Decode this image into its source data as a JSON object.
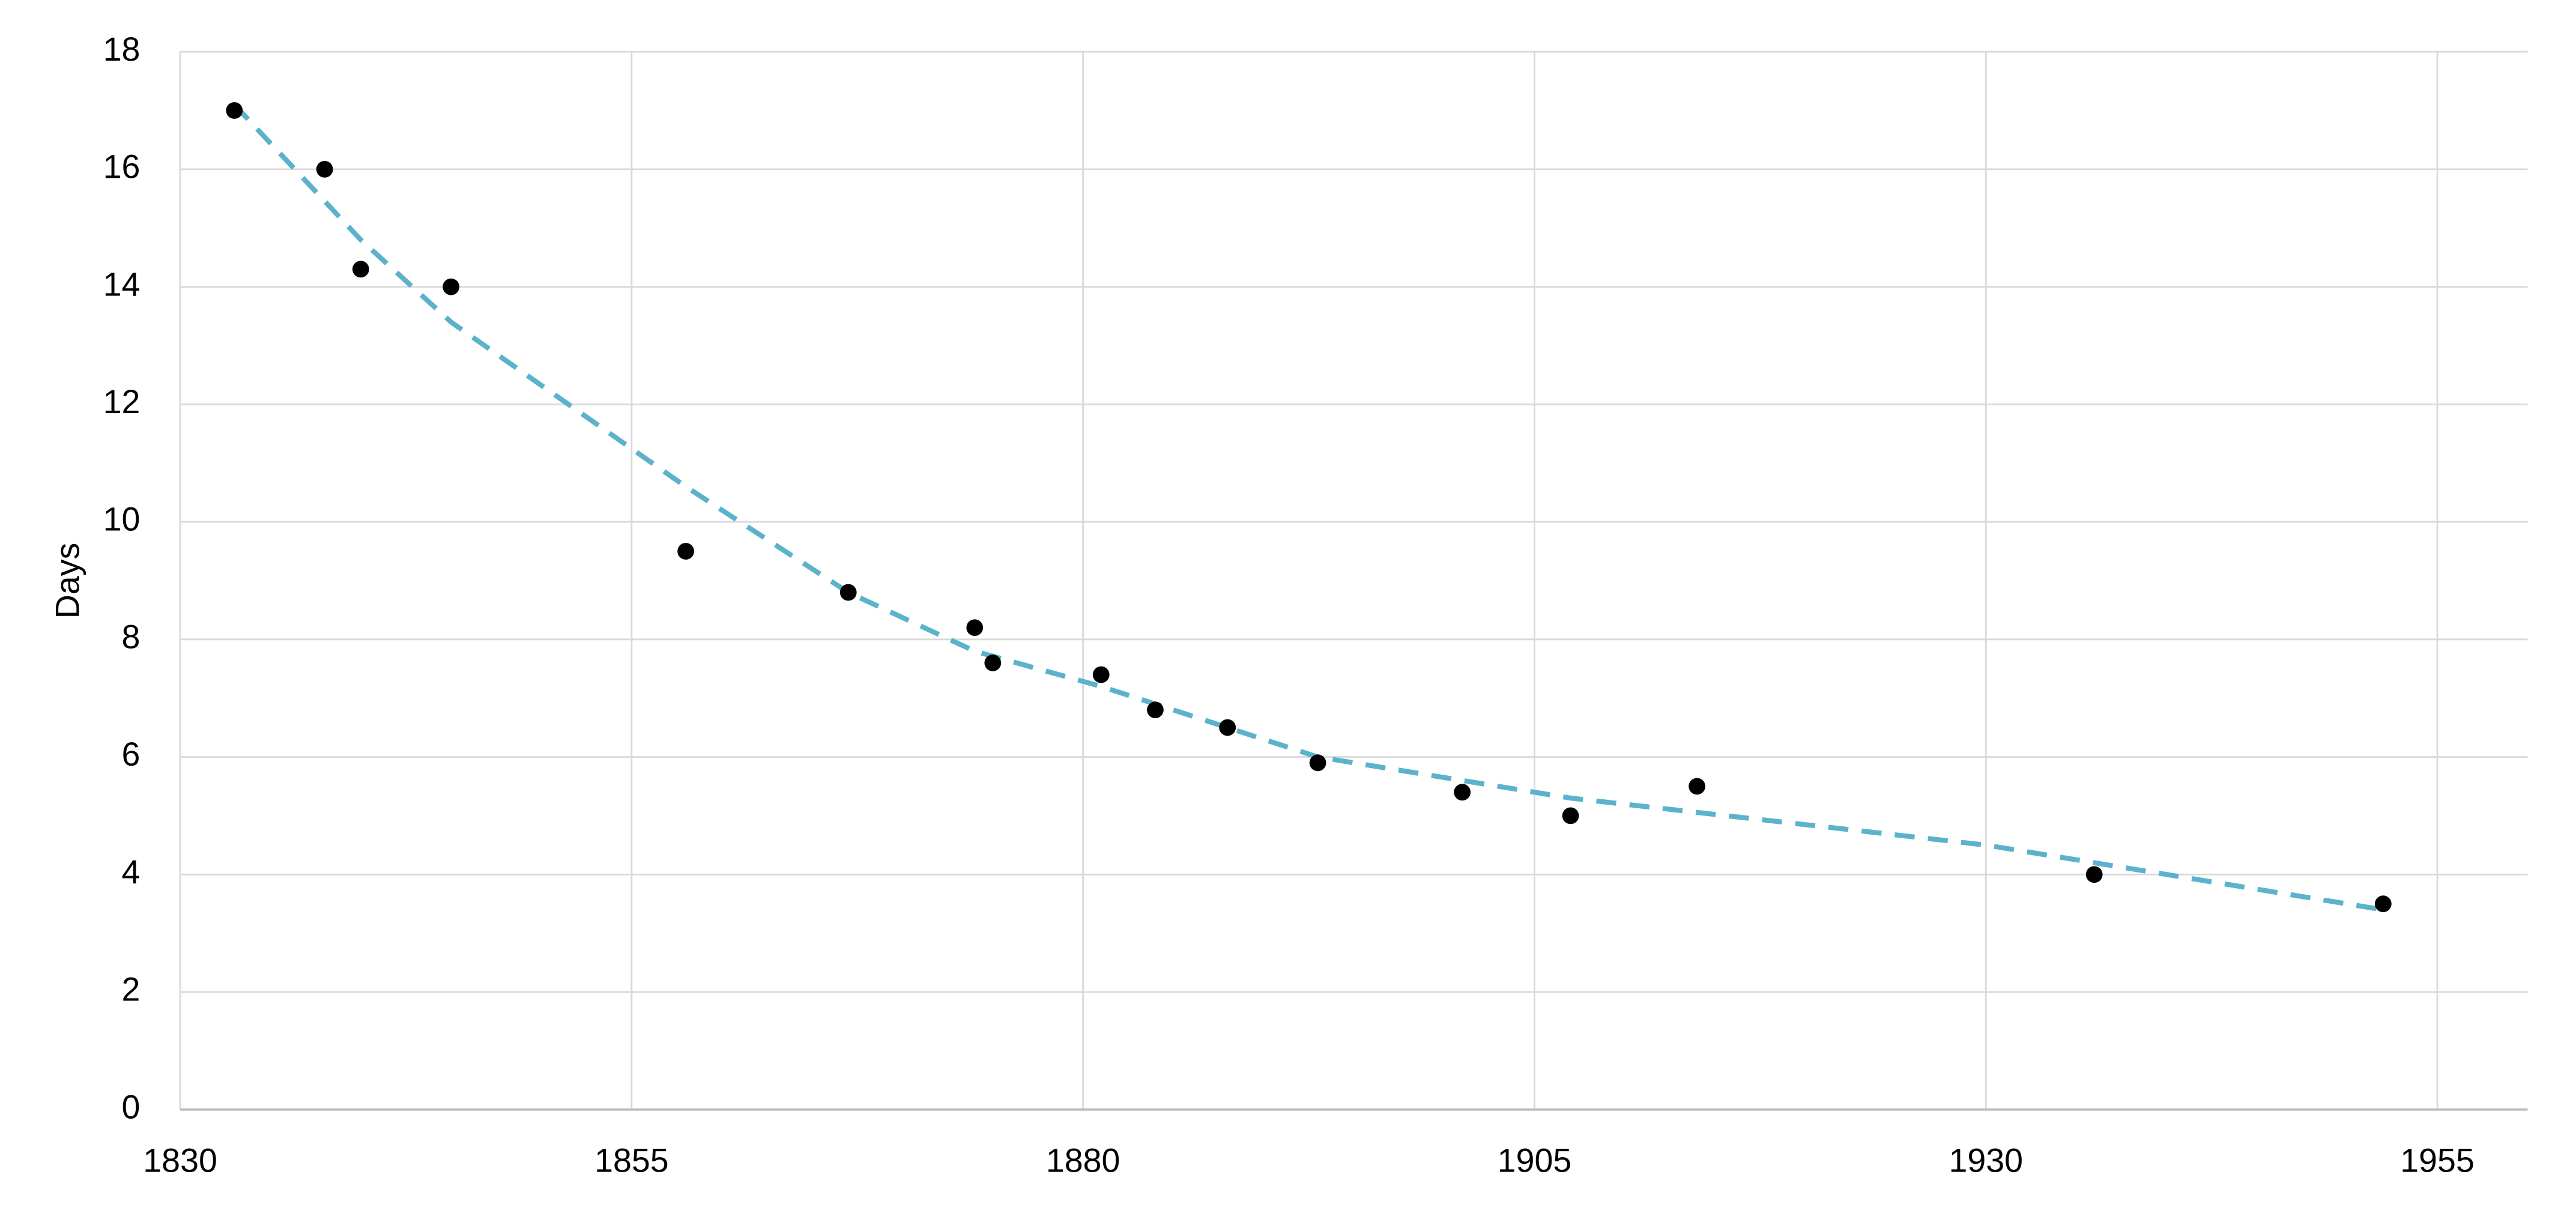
{
  "chart_data": {
    "type": "scatter",
    "y_label": "Days",
    "xlim": [
      1830,
      1960
    ],
    "xticks": [
      1830,
      1855,
      1880,
      1905,
      1930,
      1955
    ],
    "ylim": [
      0,
      18
    ],
    "yticks": [
      0,
      2,
      4,
      6,
      8,
      10,
      12,
      14,
      16,
      18
    ],
    "grid": true,
    "series": [
      {
        "type": "scatter",
        "color": "#000000",
        "x": [
          1833,
          1838,
          1840,
          1845,
          1858,
          1867,
          1874,
          1875,
          1881,
          1884,
          1888,
          1893,
          1901,
          1907,
          1914,
          1936,
          1952
        ],
        "values": [
          17,
          16,
          14.3,
          14,
          9.5,
          8.8,
          8.2,
          7.6,
          7.4,
          6.8,
          6.5,
          5.9,
          5.4,
          5.0,
          5.5,
          4.0,
          3.5
        ]
      },
      {
        "type": "line",
        "dashed": true,
        "color": "#5bb3cb",
        "x": [
          1833,
          1840,
          1845,
          1858,
          1867,
          1874,
          1881,
          1893,
          1907,
          1930,
          1952
        ],
        "values": [
          17.1,
          14.8,
          13.4,
          10.6,
          8.8,
          7.8,
          7.2,
          6.0,
          5.3,
          4.5,
          3.4
        ]
      }
    ]
  }
}
